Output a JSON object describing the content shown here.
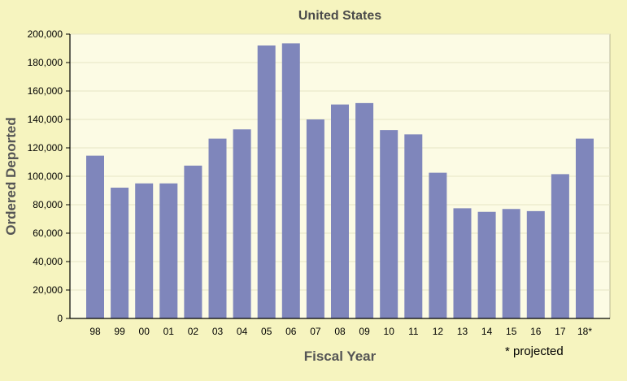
{
  "chart_data": {
    "type": "bar",
    "title": "United States",
    "xlabel": "Fiscal Year",
    "ylabel": "Ordered Deported",
    "categories": [
      "98",
      "99",
      "00",
      "01",
      "02",
      "03",
      "04",
      "05",
      "06",
      "07",
      "08",
      "09",
      "10",
      "11",
      "12",
      "13",
      "14",
      "15",
      "16",
      "17",
      "18*"
    ],
    "values": [
      114500,
      92000,
      95000,
      95000,
      107500,
      126500,
      133000,
      192000,
      193500,
      140000,
      150500,
      151500,
      132500,
      129500,
      102500,
      77500,
      75000,
      77000,
      75500,
      101500,
      126500
    ],
    "ylim": [
      0,
      200000
    ],
    "yticks": [
      0,
      20000,
      40000,
      60000,
      80000,
      100000,
      120000,
      140000,
      160000,
      180000,
      200000
    ],
    "ytick_labels": [
      "0",
      "20,000",
      "40,000",
      "60,000",
      "80,000",
      "100,000",
      "120,000",
      "140,000",
      "160,000",
      "180,000",
      "200,000"
    ],
    "grid": true,
    "note": "* projected",
    "colors": {
      "background": "#f6f4bf",
      "plot_background": "#fcfbe4",
      "bar": "#7f86bb",
      "grid": "#e6e4c4",
      "axis": "#000000"
    }
  }
}
